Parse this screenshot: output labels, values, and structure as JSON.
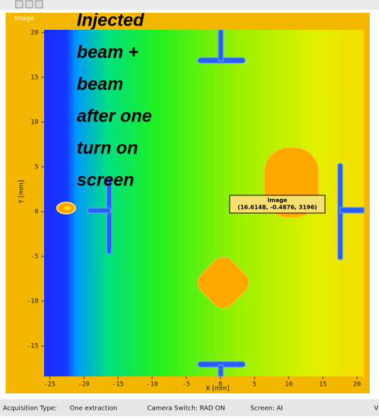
{
  "panel": {
    "title": "Image"
  },
  "overlay": {
    "lines": [
      "Injected",
      "beam +",
      "beam",
      "after one",
      "turn on",
      "screen"
    ]
  },
  "plot": {
    "x_label": "X [mm]",
    "y_label": "Y [mm]",
    "xlim": [
      -25.83,
      21.04
    ],
    "ylim": [
      -18.4,
      20.3
    ],
    "xticks": [
      -25,
      -20,
      -15,
      -10,
      -5,
      0,
      5,
      10,
      15,
      20
    ],
    "yticks": [
      20,
      15,
      10,
      5,
      0,
      -5,
      -10,
      -15
    ]
  },
  "tooltip": {
    "title": "Image",
    "text": "(16.6148, -0.4876, 3196)"
  },
  "status_bar": {
    "items": [
      "Acquisition Type:",
      "One extraction",
      "Camera Switch: RAD ON",
      "Screen: AI",
      "V"
    ]
  }
}
